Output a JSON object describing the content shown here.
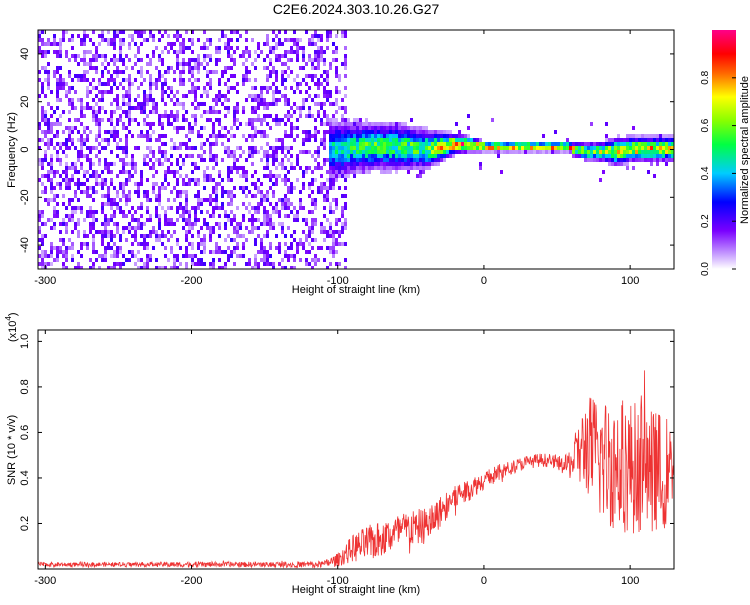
{
  "chart_data": [
    {
      "type": "heatmap",
      "title": "C2E6.2024.303.10.26.G27",
      "xlabel": "Height of straight line (km)",
      "ylabel": "Frequency (Hz)",
      "xlim": [
        -305,
        130
      ],
      "ylim": [
        -50,
        50
      ],
      "x_ticks": [
        -300,
        -200,
        -100,
        0,
        100
      ],
      "x_tick_labels": [
        "-300",
        "-200",
        "-100",
        "0",
        "100"
      ],
      "y_ticks": [
        -40,
        -20,
        0,
        20,
        40
      ],
      "y_tick_labels": [
        "-40",
        "-20",
        "0",
        "20",
        "40"
      ],
      "colorbar": {
        "label": "Normalized spectral amplitude",
        "range": [
          0,
          1
        ],
        "ticks": [
          0.0,
          0.2,
          0.4,
          0.6,
          0.8
        ],
        "tick_labels": [
          "0.0",
          "0.2",
          "0.4",
          "0.6",
          "0.8"
        ],
        "colormap": [
          "#ffffff",
          "#8800ff",
          "#0000ff",
          "#00ffff",
          "#00ff00",
          "#ffff00",
          "#ff0000",
          "#ff0088"
        ]
      },
      "noise_region": {
        "x_range": [
          -305,
          -95
        ],
        "freq_range": [
          -50,
          50
        ],
        "amplitude": [
          0.0,
          0.2
        ]
      },
      "signal_band": {
        "x": [
          -100,
          -80,
          -60,
          -40,
          -30,
          -20,
          -10,
          0,
          20,
          40,
          58,
          60,
          70,
          80,
          90,
          100,
          110,
          120,
          130
        ],
        "freq_center": [
          1,
          2,
          2,
          1,
          2,
          3,
          3,
          2,
          2,
          2,
          2,
          1,
          0,
          0,
          0,
          1,
          1,
          1,
          1
        ],
        "half_width_hz": [
          6,
          5,
          5,
          4,
          3,
          2,
          1.5,
          1,
          1,
          1,
          1,
          1.5,
          2,
          2,
          3,
          2.5,
          2.5,
          2.5,
          2.5
        ],
        "peak_amplitude": [
          0.45,
          0.55,
          0.55,
          0.6,
          0.75,
          0.85,
          0.85,
          0.85,
          0.85,
          0.85,
          0.85,
          0.7,
          0.6,
          0.65,
          0.7,
          0.75,
          0.75,
          0.75,
          0.75
        ]
      }
    },
    {
      "type": "line",
      "title": "",
      "xlabel": "Height of straight line (km)",
      "ylabel": "SNR (10 * v/v)",
      "y_multiplier": "(x10",
      "y_multiplier_exp": "4",
      "y_multiplier_close": ")",
      "xlim": [
        -305,
        130
      ],
      "ylim": [
        0,
        1.05
      ],
      "x_ticks": [
        -300,
        -200,
        -100,
        0,
        100
      ],
      "x_tick_labels": [
        "-300",
        "-200",
        "-100",
        "0",
        "100"
      ],
      "y_ticks": [
        0.2,
        0.4,
        0.6,
        0.8,
        1.0
      ],
      "y_tick_labels": [
        "0.2",
        "0.4",
        "0.6",
        "0.8",
        "1.0"
      ],
      "series": [
        {
          "color": "#ee3333",
          "x": [
            -305,
            -250,
            -200,
            -150,
            -110,
            -100,
            -90,
            -80,
            -70,
            -60,
            -50,
            -40,
            -30,
            -20,
            -10,
            0,
            10,
            20,
            30,
            40,
            50,
            55,
            60,
            65,
            70,
            80,
            90,
            100,
            110,
            120,
            130
          ],
          "mean": [
            0.02,
            0.02,
            0.02,
            0.02,
            0.02,
            0.04,
            0.09,
            0.11,
            0.13,
            0.16,
            0.18,
            0.19,
            0.25,
            0.32,
            0.35,
            0.39,
            0.42,
            0.45,
            0.47,
            0.48,
            0.47,
            0.45,
            0.47,
            0.5,
            0.55,
            0.48,
            0.46,
            0.45,
            0.44,
            0.43,
            0.42
          ],
          "amp": [
            0.01,
            0.01,
            0.012,
            0.012,
            0.015,
            0.03,
            0.06,
            0.08,
            0.08,
            0.08,
            0.08,
            0.08,
            0.07,
            0.06,
            0.05,
            0.04,
            0.04,
            0.03,
            0.03,
            0.03,
            0.03,
            0.04,
            0.08,
            0.15,
            0.22,
            0.28,
            0.3,
            0.3,
            0.28,
            0.26,
            0.24
          ]
        }
      ]
    }
  ]
}
